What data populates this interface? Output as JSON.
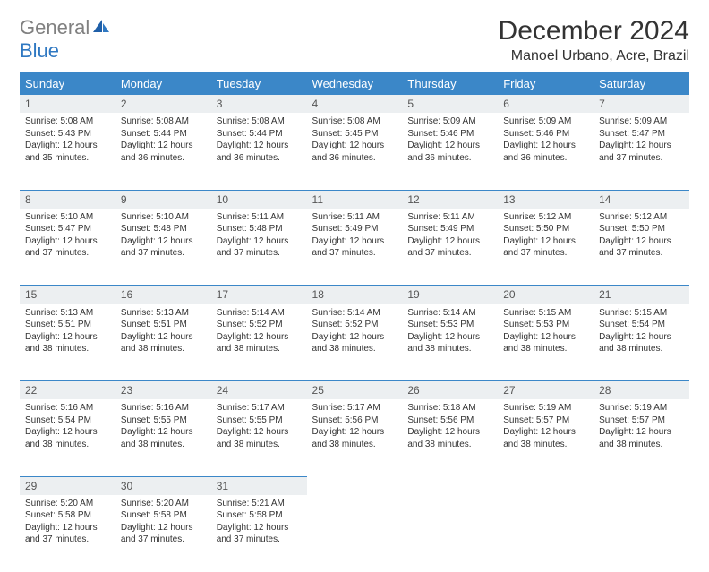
{
  "logo": {
    "gray": "General",
    "blue": "Blue"
  },
  "title": "December 2024",
  "location": "Manoel Urbano, Acre, Brazil",
  "colors": {
    "header_bg": "#3b87c8",
    "header_text": "#ffffff",
    "daynum_bg": "#eceff1",
    "rule": "#3b87c8",
    "logo_gray": "#808080",
    "logo_blue": "#2f78c2"
  },
  "columns": [
    "Sunday",
    "Monday",
    "Tuesday",
    "Wednesday",
    "Thursday",
    "Friday",
    "Saturday"
  ],
  "weeks": [
    [
      {
        "n": "1",
        "sr": "5:08 AM",
        "ss": "5:43 PM",
        "dl": "12 hours and 35 minutes."
      },
      {
        "n": "2",
        "sr": "5:08 AM",
        "ss": "5:44 PM",
        "dl": "12 hours and 36 minutes."
      },
      {
        "n": "3",
        "sr": "5:08 AM",
        "ss": "5:44 PM",
        "dl": "12 hours and 36 minutes."
      },
      {
        "n": "4",
        "sr": "5:08 AM",
        "ss": "5:45 PM",
        "dl": "12 hours and 36 minutes."
      },
      {
        "n": "5",
        "sr": "5:09 AM",
        "ss": "5:46 PM",
        "dl": "12 hours and 36 minutes."
      },
      {
        "n": "6",
        "sr": "5:09 AM",
        "ss": "5:46 PM",
        "dl": "12 hours and 36 minutes."
      },
      {
        "n": "7",
        "sr": "5:09 AM",
        "ss": "5:47 PM",
        "dl": "12 hours and 37 minutes."
      }
    ],
    [
      {
        "n": "8",
        "sr": "5:10 AM",
        "ss": "5:47 PM",
        "dl": "12 hours and 37 minutes."
      },
      {
        "n": "9",
        "sr": "5:10 AM",
        "ss": "5:48 PM",
        "dl": "12 hours and 37 minutes."
      },
      {
        "n": "10",
        "sr": "5:11 AM",
        "ss": "5:48 PM",
        "dl": "12 hours and 37 minutes."
      },
      {
        "n": "11",
        "sr": "5:11 AM",
        "ss": "5:49 PM",
        "dl": "12 hours and 37 minutes."
      },
      {
        "n": "12",
        "sr": "5:11 AM",
        "ss": "5:49 PM",
        "dl": "12 hours and 37 minutes."
      },
      {
        "n": "13",
        "sr": "5:12 AM",
        "ss": "5:50 PM",
        "dl": "12 hours and 37 minutes."
      },
      {
        "n": "14",
        "sr": "5:12 AM",
        "ss": "5:50 PM",
        "dl": "12 hours and 37 minutes."
      }
    ],
    [
      {
        "n": "15",
        "sr": "5:13 AM",
        "ss": "5:51 PM",
        "dl": "12 hours and 38 minutes."
      },
      {
        "n": "16",
        "sr": "5:13 AM",
        "ss": "5:51 PM",
        "dl": "12 hours and 38 minutes."
      },
      {
        "n": "17",
        "sr": "5:14 AM",
        "ss": "5:52 PM",
        "dl": "12 hours and 38 minutes."
      },
      {
        "n": "18",
        "sr": "5:14 AM",
        "ss": "5:52 PM",
        "dl": "12 hours and 38 minutes."
      },
      {
        "n": "19",
        "sr": "5:14 AM",
        "ss": "5:53 PM",
        "dl": "12 hours and 38 minutes."
      },
      {
        "n": "20",
        "sr": "5:15 AM",
        "ss": "5:53 PM",
        "dl": "12 hours and 38 minutes."
      },
      {
        "n": "21",
        "sr": "5:15 AM",
        "ss": "5:54 PM",
        "dl": "12 hours and 38 minutes."
      }
    ],
    [
      {
        "n": "22",
        "sr": "5:16 AM",
        "ss": "5:54 PM",
        "dl": "12 hours and 38 minutes."
      },
      {
        "n": "23",
        "sr": "5:16 AM",
        "ss": "5:55 PM",
        "dl": "12 hours and 38 minutes."
      },
      {
        "n": "24",
        "sr": "5:17 AM",
        "ss": "5:55 PM",
        "dl": "12 hours and 38 minutes."
      },
      {
        "n": "25",
        "sr": "5:17 AM",
        "ss": "5:56 PM",
        "dl": "12 hours and 38 minutes."
      },
      {
        "n": "26",
        "sr": "5:18 AM",
        "ss": "5:56 PM",
        "dl": "12 hours and 38 minutes."
      },
      {
        "n": "27",
        "sr": "5:19 AM",
        "ss": "5:57 PM",
        "dl": "12 hours and 38 minutes."
      },
      {
        "n": "28",
        "sr": "5:19 AM",
        "ss": "5:57 PM",
        "dl": "12 hours and 38 minutes."
      }
    ],
    [
      {
        "n": "29",
        "sr": "5:20 AM",
        "ss": "5:58 PM",
        "dl": "12 hours and 37 minutes."
      },
      {
        "n": "30",
        "sr": "5:20 AM",
        "ss": "5:58 PM",
        "dl": "12 hours and 37 minutes."
      },
      {
        "n": "31",
        "sr": "5:21 AM",
        "ss": "5:58 PM",
        "dl": "12 hours and 37 minutes."
      },
      null,
      null,
      null,
      null
    ]
  ],
  "labels": {
    "sunrise": "Sunrise:",
    "sunset": "Sunset:",
    "daylight": "Daylight:"
  }
}
